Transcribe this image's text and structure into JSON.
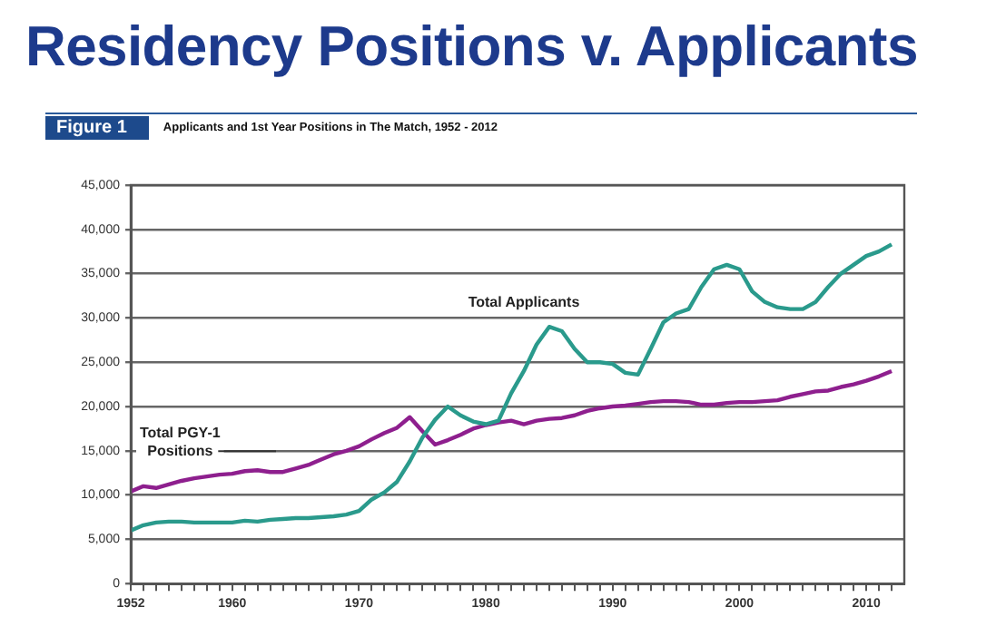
{
  "chart_data": {
    "type": "line",
    "title": "Residency Positions v. Applicants",
    "subtitle": "Applicants and 1st Year Positions in The Match, 1952 - 2012",
    "annotations": [
      "Figure 1"
    ],
    "x": [
      1952,
      1953,
      1954,
      1955,
      1956,
      1957,
      1958,
      1959,
      1960,
      1961,
      1962,
      1963,
      1964,
      1965,
      1966,
      1967,
      1968,
      1969,
      1970,
      1971,
      1972,
      1973,
      1974,
      1975,
      1976,
      1977,
      1978,
      1979,
      1980,
      1981,
      1982,
      1983,
      1984,
      1985,
      1986,
      1987,
      1988,
      1989,
      1990,
      1991,
      1992,
      1993,
      1994,
      1995,
      1996,
      1997,
      1998,
      1999,
      2000,
      2001,
      2002,
      2003,
      2004,
      2005,
      2006,
      2007,
      2008,
      2009,
      2010,
      2011,
      2012
    ],
    "series": [
      {
        "name": "Total Applicants",
        "color": "#2a9a8c",
        "values": [
          6000,
          6600,
          6900,
          7000,
          7000,
          6900,
          6900,
          6900,
          6900,
          7100,
          7000,
          7200,
          7300,
          7400,
          7400,
          7500,
          7600,
          7800,
          8200,
          9500,
          10300,
          11500,
          13800,
          16500,
          18500,
          20000,
          19000,
          18300,
          18000,
          18400,
          21500,
          24000,
          27000,
          29000,
          28500,
          26500,
          25000,
          25000,
          24800,
          23800,
          23600,
          26500,
          29500,
          30500,
          31000,
          33500,
          35500,
          36000,
          35500,
          33000,
          31800,
          31200,
          31000,
          31000,
          31800,
          33500,
          35000,
          36000,
          37000,
          37500,
          38300
        ]
      },
      {
        "name": "Total PGY-1 Positions",
        "color": "#8e1f8e",
        "values": [
          10400,
          11000,
          10800,
          11200,
          11600,
          11900,
          12100,
          12300,
          12400,
          12700,
          12800,
          12600,
          12600,
          13000,
          13400,
          14000,
          14600,
          15000,
          15500,
          16300,
          17000,
          17600,
          18800,
          17200,
          15700,
          16200,
          16800,
          17500,
          17900,
          18200,
          18400,
          18000,
          18400,
          18600,
          18700,
          19000,
          19500,
          19800,
          20000,
          20100,
          20300,
          20500,
          20600,
          20600,
          20500,
          20200,
          20200,
          20400,
          20500,
          20500,
          20600,
          20700,
          21100,
          21400,
          21700,
          21800,
          22200,
          22500,
          22900,
          23400,
          24000
        ]
      }
    ],
    "xlim": [
      1952,
      2013
    ],
    "xticks": [
      1952,
      {
        "value": 1953,
        "label": null
      },
      {
        "value": 1954,
        "label": null
      },
      {
        "value": 1955,
        "label": null
      },
      {
        "value": 1956,
        "label": null
      },
      {
        "value": 1957,
        "label": null
      },
      {
        "value": 1958,
        "label": null
      },
      {
        "value": 1959,
        "label": null
      },
      1960,
      {
        "value": 1961,
        "label": null
      },
      {
        "value": 1962,
        "label": null
      },
      {
        "value": 1963,
        "label": null
      },
      {
        "value": 1964,
        "label": null
      },
      {
        "value": 1965,
        "label": null
      },
      {
        "value": 1966,
        "label": null
      },
      {
        "value": 1967,
        "label": null
      },
      {
        "value": 1968,
        "label": null
      },
      {
        "value": 1969,
        "label": null
      },
      1970,
      {
        "value": 1971,
        "label": null
      },
      {
        "value": 1972,
        "label": null
      },
      {
        "value": 1973,
        "label": null
      },
      {
        "value": 1974,
        "label": null
      },
      {
        "value": 1975,
        "label": null
      },
      {
        "value": 1976,
        "label": null
      },
      {
        "value": 1977,
        "label": null
      },
      {
        "value": 1978,
        "label": null
      },
      {
        "value": 1979,
        "label": null
      },
      1980,
      {
        "value": 1981,
        "label": null
      },
      {
        "value": 1982,
        "label": null
      },
      {
        "value": 1983,
        "label": null
      },
      {
        "value": 1984,
        "label": null
      },
      {
        "value": 1985,
        "label": null
      },
      {
        "value": 1986,
        "label": null
      },
      {
        "value": 1987,
        "label": null
      },
      {
        "value": 1988,
        "label": null
      },
      {
        "value": 1989,
        "label": null
      },
      1990,
      {
        "value": 1991,
        "label": null
      },
      {
        "value": 1992,
        "label": null
      },
      {
        "value": 1993,
        "label": null
      },
      {
        "value": 1994,
        "label": null
      },
      {
        "value": 1995,
        "label": null
      },
      {
        "value": 1996,
        "label": null
      },
      {
        "value": 1997,
        "label": null
      },
      {
        "value": 1998,
        "label": null
      },
      {
        "value": 1999,
        "label": null
      },
      2000,
      {
        "value": 2001,
        "label": null
      },
      {
        "value": 2002,
        "label": null
      },
      {
        "value": 2003,
        "label": null
      },
      {
        "value": 2004,
        "label": null
      },
      {
        "value": 2005,
        "label": null
      },
      {
        "value": 2006,
        "label": null
      },
      {
        "value": 2007,
        "label": null
      },
      {
        "value": 2008,
        "label": null
      },
      {
        "value": 2009,
        "label": null
      },
      2010,
      {
        "value": 2011,
        "label": null
      },
      {
        "value": 2012,
        "label": null
      }
    ],
    "ylim": [
      0,
      45000
    ],
    "yticks": [
      0,
      {
        "value": 5000,
        "label": "5,000"
      },
      {
        "value": 10000,
        "label": "10,000"
      },
      {
        "value": 15000,
        "label": "15,000"
      },
      {
        "value": 20000,
        "label": "20,000"
      },
      {
        "value": 25000,
        "label": "25,000"
      },
      {
        "value": 30000,
        "label": "30,000"
      },
      {
        "value": 35000,
        "label": "35,000"
      },
      {
        "value": 40000,
        "label": "40,000"
      },
      {
        "value": 45000,
        "label": "45,000"
      }
    ],
    "grid": "y",
    "legend": false,
    "marker": "none",
    "line_style": "solid"
  }
}
